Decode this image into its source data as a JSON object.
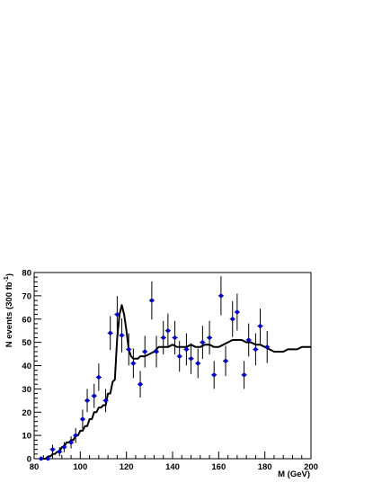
{
  "chart_data": {
    "type": "scatter",
    "xlabel": "M (GeV)",
    "ylabel": {
      "main": "N events (300 fb",
      "superscript": "-1",
      "close": ")"
    },
    "xlim": [
      80,
      200
    ],
    "ylim": [
      0,
      80
    ],
    "x_ticks": [
      80,
      100,
      120,
      140,
      160,
      180,
      200
    ],
    "y_ticks": [
      0,
      10,
      20,
      30,
      40,
      50,
      60,
      70,
      80
    ],
    "grid": false,
    "series": [
      {
        "kind": "points_with_errors",
        "color": "#0000cc",
        "x_half_width": 1.2,
        "points": [
          {
            "x": 83,
            "y": 0,
            "err": 1
          },
          {
            "x": 86,
            "y": 0,
            "err": 1
          },
          {
            "x": 88,
            "y": 4,
            "err": 2
          },
          {
            "x": 91,
            "y": 3,
            "err": 2
          },
          {
            "x": 93,
            "y": 5,
            "err": 2.2
          },
          {
            "x": 96,
            "y": 7,
            "err": 2.6
          },
          {
            "x": 98,
            "y": 10,
            "err": 3.2
          },
          {
            "x": 101,
            "y": 17,
            "err": 4.1
          },
          {
            "x": 103,
            "y": 25,
            "err": 5
          },
          {
            "x": 106,
            "y": 27,
            "err": 5.2
          },
          {
            "x": 108,
            "y": 35,
            "err": 5.9
          },
          {
            "x": 111,
            "y": 25,
            "err": 5
          },
          {
            "x": 113,
            "y": 54,
            "err": 7.3
          },
          {
            "x": 116,
            "y": 62,
            "err": 7.9
          },
          {
            "x": 118,
            "y": 53,
            "err": 7.3
          },
          {
            "x": 121,
            "y": 47,
            "err": 6.9
          },
          {
            "x": 123,
            "y": 41,
            "err": 6.4
          },
          {
            "x": 126,
            "y": 32,
            "err": 5.7
          },
          {
            "x": 128,
            "y": 46,
            "err": 6.8
          },
          {
            "x": 131,
            "y": 68,
            "err": 8.2
          },
          {
            "x": 133,
            "y": 46,
            "err": 6.8
          },
          {
            "x": 136,
            "y": 52,
            "err": 7.2
          },
          {
            "x": 138,
            "y": 55,
            "err": 7.4
          },
          {
            "x": 141,
            "y": 52,
            "err": 7.2
          },
          {
            "x": 143,
            "y": 44,
            "err": 6.6
          },
          {
            "x": 146,
            "y": 47,
            "err": 6.9
          },
          {
            "x": 148,
            "y": 43,
            "err": 6.6
          },
          {
            "x": 151,
            "y": 41,
            "err": 6.4
          },
          {
            "x": 153,
            "y": 50,
            "err": 7.1
          },
          {
            "x": 156,
            "y": 52,
            "err": 7.2
          },
          {
            "x": 158,
            "y": 36,
            "err": 6
          },
          {
            "x": 161,
            "y": 70,
            "err": 8.4
          },
          {
            "x": 163,
            "y": 42,
            "err": 6.5
          },
          {
            "x": 166,
            "y": 60,
            "err": 7.7
          },
          {
            "x": 168,
            "y": 63,
            "err": 7.9
          },
          {
            "x": 171,
            "y": 36,
            "err": 6
          },
          {
            "x": 173,
            "y": 51,
            "err": 7.1
          },
          {
            "x": 176,
            "y": 47,
            "err": 6.9
          },
          {
            "x": 178,
            "y": 57,
            "err": 7.5
          },
          {
            "x": 181,
            "y": 48,
            "err": 6.9
          }
        ]
      },
      {
        "kind": "curve",
        "color": "#000000",
        "x": [
          83,
          85,
          86,
          87,
          88,
          89,
          90,
          91,
          92,
          93,
          94,
          95,
          96,
          97,
          98,
          99,
          100,
          101,
          102,
          103,
          104,
          105,
          106,
          107,
          108,
          109,
          110,
          111,
          112,
          113,
          114,
          115,
          116,
          117,
          118,
          119,
          120,
          121,
          122,
          123,
          124,
          125,
          126,
          128,
          130,
          132,
          134,
          136,
          138,
          140,
          142,
          144,
          146,
          148,
          150,
          152,
          154,
          156,
          158,
          160,
          162,
          164,
          166,
          168,
          170,
          172,
          174,
          176,
          178,
          180,
          182,
          184,
          186,
          188,
          190,
          192,
          194,
          196,
          198,
          200
        ],
        "y": [
          0,
          0,
          1,
          1,
          2,
          2,
          3,
          3,
          5,
          5,
          7,
          7,
          8,
          8,
          10,
          10,
          12,
          12,
          14,
          14,
          17,
          17,
          20,
          20,
          22,
          22,
          23,
          23,
          28,
          28,
          33,
          34,
          52,
          62,
          66,
          62,
          55,
          47,
          44,
          43,
          43,
          43,
          44,
          44,
          45,
          46,
          48,
          48,
          48,
          49,
          48,
          48,
          48,
          49,
          48,
          48,
          49,
          49,
          48,
          48,
          49,
          50,
          51,
          51,
          51,
          50,
          50,
          49,
          49,
          48,
          47,
          46,
          46,
          46,
          47,
          47,
          47,
          48,
          48,
          48
        ]
      }
    ]
  }
}
